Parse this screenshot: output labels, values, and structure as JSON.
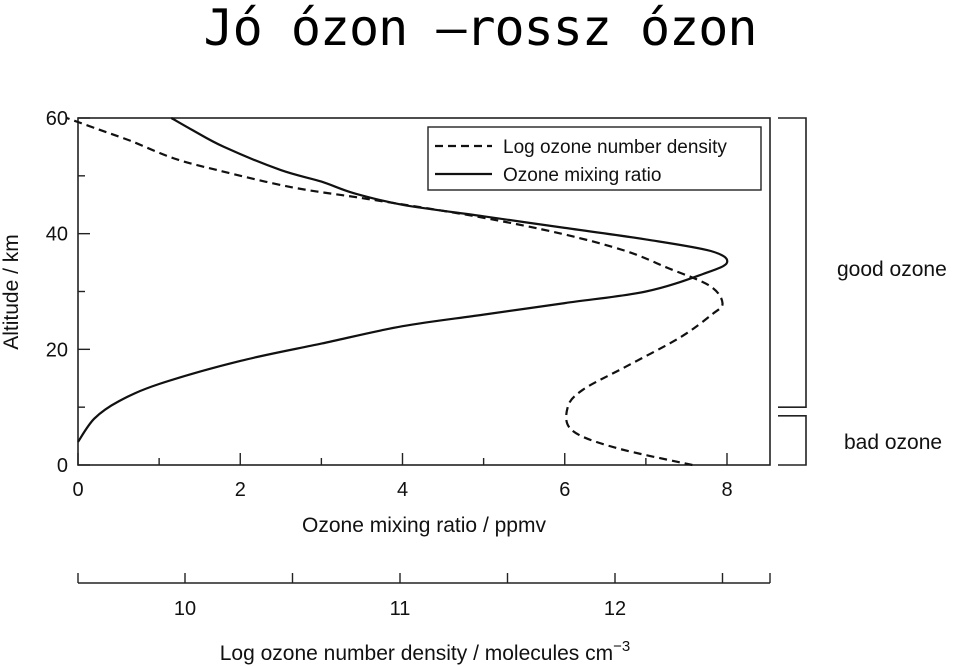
{
  "slide": {
    "title": "Jó ózon –rossz ózon"
  },
  "chart_data": {
    "type": "line",
    "xlabel": "Ozone mixing ratio / ppmv",
    "ylabel": "Altitude / km",
    "xlim": [
      0,
      8.5
    ],
    "ylim": [
      0,
      60
    ],
    "x_ticks": [
      "0",
      "2",
      "4",
      "6",
      "8"
    ],
    "y_ticks": [
      "0",
      "20",
      "40",
      "60"
    ],
    "secondary_x": {
      "label_main": "Log ozone number density / molecules cm",
      "label_superscript": "−3",
      "lim": [
        9.5,
        12.75
      ],
      "ticks": [
        "10",
        "11",
        "12"
      ]
    },
    "series": [
      {
        "name": "Log ozone number density",
        "style": "dashed",
        "axis": "secondary",
        "points": [
          [
            12.36,
            0
          ],
          [
            12.0,
            3
          ],
          [
            11.8,
            6
          ],
          [
            11.78,
            10
          ],
          [
            11.85,
            13
          ],
          [
            12.05,
            17
          ],
          [
            12.3,
            22
          ],
          [
            12.45,
            26
          ],
          [
            12.5,
            28
          ],
          [
            12.44,
            31
          ],
          [
            12.25,
            34
          ],
          [
            12.05,
            37
          ],
          [
            11.75,
            40
          ],
          [
            11.35,
            43
          ],
          [
            10.85,
            46
          ],
          [
            10.5,
            48
          ],
          [
            10.15,
            51
          ],
          [
            9.95,
            53
          ],
          [
            9.75,
            56
          ],
          [
            9.6,
            58
          ],
          [
            9.45,
            60
          ]
        ]
      },
      {
        "name": "Ozone mixing ratio",
        "style": "solid",
        "axis": "primary",
        "points": [
          [
            0.0,
            4
          ],
          [
            0.2,
            8
          ],
          [
            0.5,
            11
          ],
          [
            1.0,
            14
          ],
          [
            2.0,
            18
          ],
          [
            3.0,
            21
          ],
          [
            4.0,
            24
          ],
          [
            5.0,
            26
          ],
          [
            6.0,
            28
          ],
          [
            7.0,
            30
          ],
          [
            7.7,
            33
          ],
          [
            8.0,
            35
          ],
          [
            7.8,
            37
          ],
          [
            7.0,
            39
          ],
          [
            6.0,
            41
          ],
          [
            5.0,
            43
          ],
          [
            4.0,
            45
          ],
          [
            3.4,
            47
          ],
          [
            3.0,
            49
          ],
          [
            2.5,
            51
          ],
          [
            1.8,
            55
          ],
          [
            1.4,
            58
          ],
          [
            1.15,
            60
          ]
        ]
      }
    ],
    "brackets": [
      {
        "label": "good ozone",
        "range": [
          10,
          60
        ]
      },
      {
        "label": "bad ozone",
        "range": [
          0,
          8.5
        ]
      }
    ]
  }
}
